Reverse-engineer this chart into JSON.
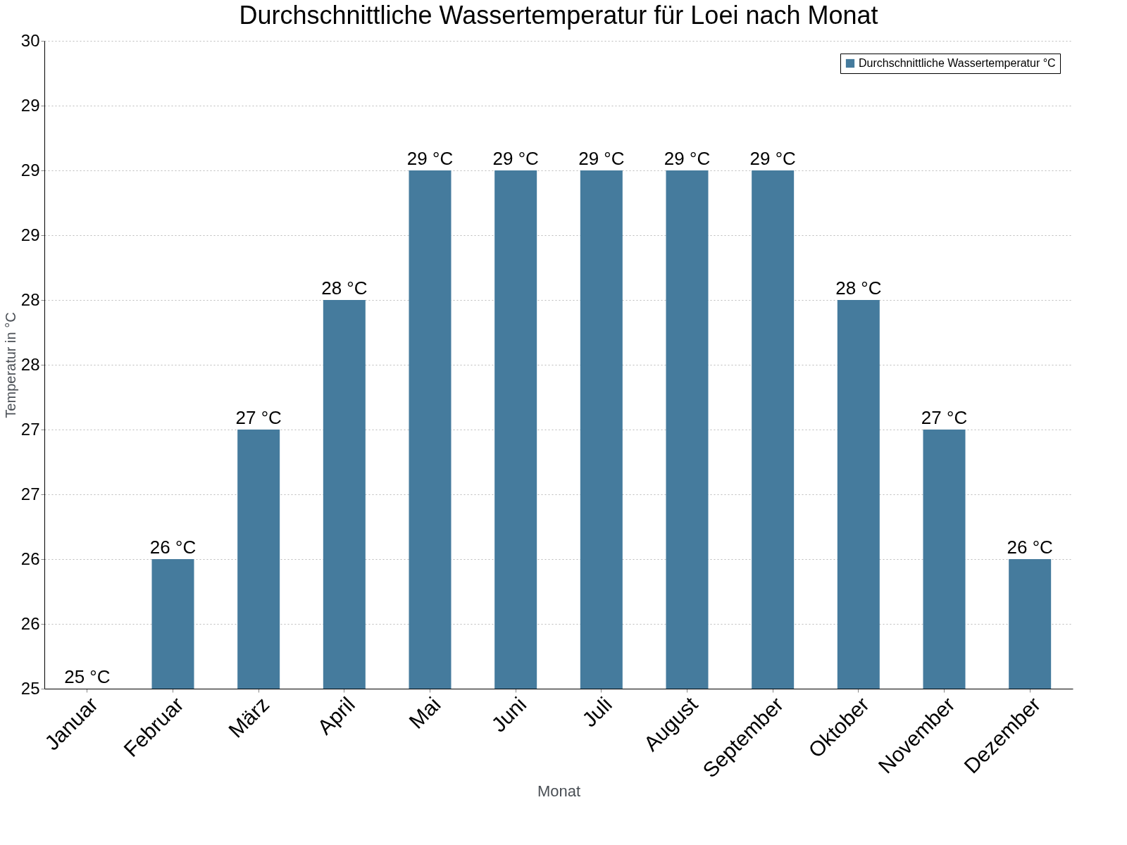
{
  "chart_data": {
    "type": "bar",
    "title": "Durchschnittliche Wassertemperatur für Loei nach Monat",
    "xlabel": "Monat",
    "ylabel": "Temperatur in °C",
    "categories": [
      "Januar",
      "Februar",
      "März",
      "April",
      "Mai",
      "Juni",
      "Juli",
      "August",
      "September",
      "Oktober",
      "November",
      "Dezember"
    ],
    "series": [
      {
        "name": "Durchschnittliche Wassertemperatur °C",
        "color": "#457b9d",
        "values": [
          25,
          26,
          27,
          28,
          29,
          29,
          29,
          29,
          29,
          28,
          27,
          26
        ],
        "value_labels": [
          "25 °C",
          "26 °C",
          "27 °C",
          "28 °C",
          "29 °C",
          "29 °C",
          "29 °C",
          "29 °C",
          "29 °C",
          "28 °C",
          "27 °C",
          "26 °C"
        ]
      }
    ],
    "ylim": [
      25,
      30
    ],
    "yticks": [
      25,
      {
        "value": 25.5,
        "label": "26"
      },
      26,
      {
        "value": 26.5,
        "label": "27"
      },
      27,
      {
        "value": 27.5,
        "label": "28"
      },
      28,
      {
        "value": 28.5,
        "label": "29"
      },
      29,
      {
        "value": 29.5,
        "label": "29"
      },
      30
    ],
    "grid": "y",
    "legend": "top right"
  }
}
